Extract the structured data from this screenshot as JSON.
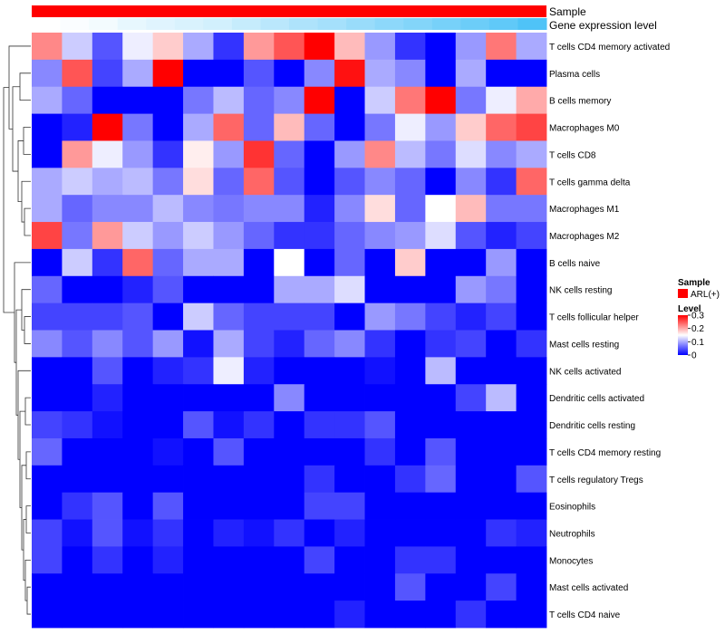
{
  "chart_data": {
    "type": "heatmap",
    "title": "",
    "annotation_rows": [
      {
        "name": "Sample",
        "legend_value": "ARL(+)",
        "color": "#ff0000"
      },
      {
        "name": "Gene expression level"
      }
    ],
    "gene_expression_levels": [
      0.0,
      0.02,
      0.05,
      0.1,
      0.13,
      0.16,
      0.19,
      0.24,
      0.29,
      0.34,
      0.38,
      0.43,
      0.48,
      0.52,
      0.57,
      0.62,
      0.67,
      0.74
    ],
    "rows": [
      "T cells CD4 memory activated",
      "Plasma cells",
      "B cells memory",
      "Macrophages M0",
      "T cells CD8",
      "T cells gamma delta",
      "Macrophages M1",
      "Macrophages M2",
      "B cells naive",
      "NK cells resting",
      "T cells follicular helper",
      "Mast cells resting",
      "NK cells activated",
      "Dendritic cells activated",
      "Dendritic cells resting",
      "T cells CD4 memory resting",
      "T cells regulatory  Tregs",
      "Eosinophils",
      "Neutrophils",
      "Monocytes",
      "Mast cells activated",
      "T cells CD4 naive"
    ],
    "values": [
      [
        0.22,
        0.12,
        0.05,
        0.14,
        0.18,
        0.1,
        0.03,
        0.21,
        0.25,
        0.3,
        0.19,
        0.09,
        0.03,
        0.0,
        0.09,
        0.23,
        0.1
      ],
      [
        0.08,
        0.25,
        0.04,
        0.1,
        0.3,
        0.0,
        0.0,
        0.05,
        0.0,
        0.08,
        0.29,
        0.1,
        0.08,
        0.0,
        0.1,
        0.0,
        0.0
      ],
      [
        0.1,
        0.06,
        0.0,
        0.0,
        0.0,
        0.07,
        0.11,
        0.06,
        0.08,
        0.3,
        0.0,
        0.12,
        0.23,
        0.3,
        0.07,
        0.14,
        0.2
      ],
      [
        0.0,
        0.02,
        0.3,
        0.07,
        0.0,
        0.1,
        0.24,
        0.06,
        0.19,
        0.06,
        0.0,
        0.07,
        0.14,
        0.09,
        0.18,
        0.24,
        0.26
      ],
      [
        0.0,
        0.21,
        0.14,
        0.09,
        0.03,
        0.16,
        0.09,
        0.27,
        0.06,
        0.0,
        0.09,
        0.22,
        0.11,
        0.07,
        0.13,
        0.08,
        0.1
      ],
      [
        0.1,
        0.12,
        0.1,
        0.11,
        0.07,
        0.17,
        0.06,
        0.24,
        0.05,
        0.0,
        0.05,
        0.08,
        0.06,
        0.0,
        0.08,
        0.03,
        0.24
      ],
      [
        0.1,
        0.06,
        0.08,
        0.08,
        0.11,
        0.08,
        0.07,
        0.08,
        0.08,
        0.02,
        0.08,
        0.17,
        0.06,
        0.15,
        0.19,
        0.07,
        0.07
      ],
      [
        0.26,
        0.07,
        0.21,
        0.12,
        0.09,
        0.12,
        0.09,
        0.06,
        0.03,
        0.03,
        0.06,
        0.08,
        0.09,
        0.13,
        0.05,
        0.02,
        0.04
      ],
      [
        0.0,
        0.12,
        0.03,
        0.24,
        0.06,
        0.1,
        0.1,
        0.0,
        0.15,
        0.0,
        0.06,
        0.0,
        0.18,
        0.0,
        0.0,
        0.09,
        0.0
      ],
      [
        0.06,
        0.0,
        0.0,
        0.02,
        0.05,
        0.0,
        0.0,
        0.0,
        0.1,
        0.1,
        0.13,
        0.0,
        0.0,
        0.0,
        0.09,
        0.07,
        0.0
      ],
      [
        0.04,
        0.04,
        0.04,
        0.05,
        0.0,
        0.12,
        0.06,
        0.04,
        0.04,
        0.04,
        0.0,
        0.09,
        0.07,
        0.04,
        0.02,
        0.04,
        0.0
      ],
      [
        0.08,
        0.05,
        0.08,
        0.05,
        0.09,
        0.01,
        0.1,
        0.04,
        0.02,
        0.06,
        0.08,
        0.03,
        0.0,
        0.03,
        0.04,
        0.0,
        0.03
      ],
      [
        0.0,
        0.0,
        0.05,
        0.0,
        0.02,
        0.03,
        0.14,
        0.02,
        0.0,
        0.0,
        0.0,
        0.01,
        0.0,
        0.11,
        0.0,
        0.0,
        0.0
      ],
      [
        0.0,
        0.0,
        0.02,
        0.0,
        0.0,
        0.0,
        0.0,
        0.0,
        0.08,
        0.0,
        0.0,
        0.0,
        0.0,
        0.0,
        0.04,
        0.11,
        0.0
      ],
      [
        0.04,
        0.03,
        0.01,
        0.0,
        0.0,
        0.05,
        0.01,
        0.03,
        0.0,
        0.03,
        0.03,
        0.05,
        0.0,
        0.0,
        0.0,
        0.0,
        0.0
      ],
      [
        0.06,
        0.0,
        0.0,
        0.0,
        0.01,
        0.0,
        0.05,
        0.0,
        0.0,
        0.0,
        0.0,
        0.03,
        0.0,
        0.05,
        0.0,
        0.0,
        0.0
      ],
      [
        0.0,
        0.0,
        0.0,
        0.0,
        0.0,
        0.0,
        0.0,
        0.0,
        0.0,
        0.03,
        0.0,
        0.0,
        0.03,
        0.06,
        0.0,
        0.0,
        0.05
      ],
      [
        0.0,
        0.03,
        0.05,
        0.0,
        0.05,
        0.0,
        0.0,
        0.0,
        0.0,
        0.04,
        0.04,
        0.0,
        0.0,
        0.0,
        0.0,
        0.0,
        0.0
      ],
      [
        0.04,
        0.01,
        0.05,
        0.01,
        0.03,
        0.0,
        0.02,
        0.01,
        0.03,
        0.0,
        0.02,
        0.0,
        0.0,
        0.0,
        0.0,
        0.03,
        0.02
      ],
      [
        0.04,
        0.0,
        0.03,
        0.0,
        0.02,
        0.0,
        0.0,
        0.0,
        0.0,
        0.04,
        0.0,
        0.0,
        0.03,
        0.03,
        0.0,
        0.0,
        0.0
      ],
      [
        0.0,
        0.0,
        0.0,
        0.0,
        0.0,
        0.0,
        0.0,
        0.0,
        0.0,
        0.0,
        0.0,
        0.0,
        0.05,
        0.0,
        0.0,
        0.04,
        0.0
      ],
      [
        0.0,
        0.0,
        0.0,
        0.0,
        0.0,
        0.0,
        0.0,
        0.0,
        0.0,
        0.0,
        0.02,
        0.0,
        0.0,
        0.0,
        0.03,
        0.0,
        0.0
      ]
    ],
    "color_scale": {
      "low": "#0000ff",
      "mid": "#ffffff",
      "high": "#ff0000",
      "min": 0,
      "max": 0.3
    },
    "dendrogram": "left",
    "legend": {
      "sample_title": "Sample",
      "sample_label": "ARL(+)",
      "level_title": "Level",
      "level_ticks": [
        {
          "value": 0.3,
          "label": "0.3"
        },
        {
          "value": 0.2,
          "label": "0.2"
        },
        {
          "value": 0.1,
          "label": "0.1"
        },
        {
          "value": 0,
          "label": "0"
        }
      ]
    }
  }
}
